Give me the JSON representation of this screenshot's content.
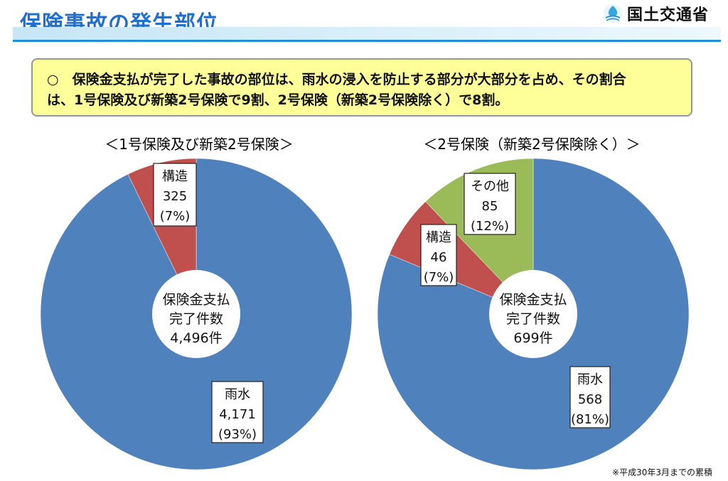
{
  "header": {
    "title": "保険事故の発生部位",
    "logo_text": "国土交通省"
  },
  "note": {
    "line1": "○　保険金支払が完了した事故の部位は、雨水の浸入を防止する部分が大部分を占め、その割合",
    "line2": "は、1号保険及び新築2号保険で9割、2号保険（新築2号保険除く）で8割。"
  },
  "footnote": "※平成30年3月までの累積",
  "colors": {
    "rain": "#4f81bd",
    "structure": "#c0504d",
    "other": "#9bbb59",
    "title": "#1e6fd0"
  },
  "chart_data": [
    {
      "type": "pie",
      "title": "＜1号保険及び新築2号保険＞",
      "center_label": {
        "line1": "保険金支払",
        "line2": "完了件数",
        "line3": "4,496件"
      },
      "slices": [
        {
          "name": "雨水",
          "value": 4171,
          "value_label": "4,171",
          "percent_label": "(93%)",
          "color": "#4f81bd"
        },
        {
          "name": "構造",
          "value": 325,
          "value_label": "325",
          "percent_label": "(7%)",
          "color": "#c0504d"
        }
      ]
    },
    {
      "type": "pie",
      "title": "＜2号保険（新築2号保険除く）＞",
      "center_label": {
        "line1": "保険金支払",
        "line2": "完了件数",
        "line3": "699件"
      },
      "slices": [
        {
          "name": "雨水",
          "value": 568,
          "value_label": "568",
          "percent_label": "(81%)",
          "color": "#4f81bd"
        },
        {
          "name": "構造",
          "value": 46,
          "value_label": "46",
          "percent_label": "(7%)",
          "color": "#c0504d"
        },
        {
          "name": "その他",
          "value": 85,
          "value_label": "85",
          "percent_label": "(12%)",
          "color": "#9bbb59"
        }
      ]
    }
  ]
}
